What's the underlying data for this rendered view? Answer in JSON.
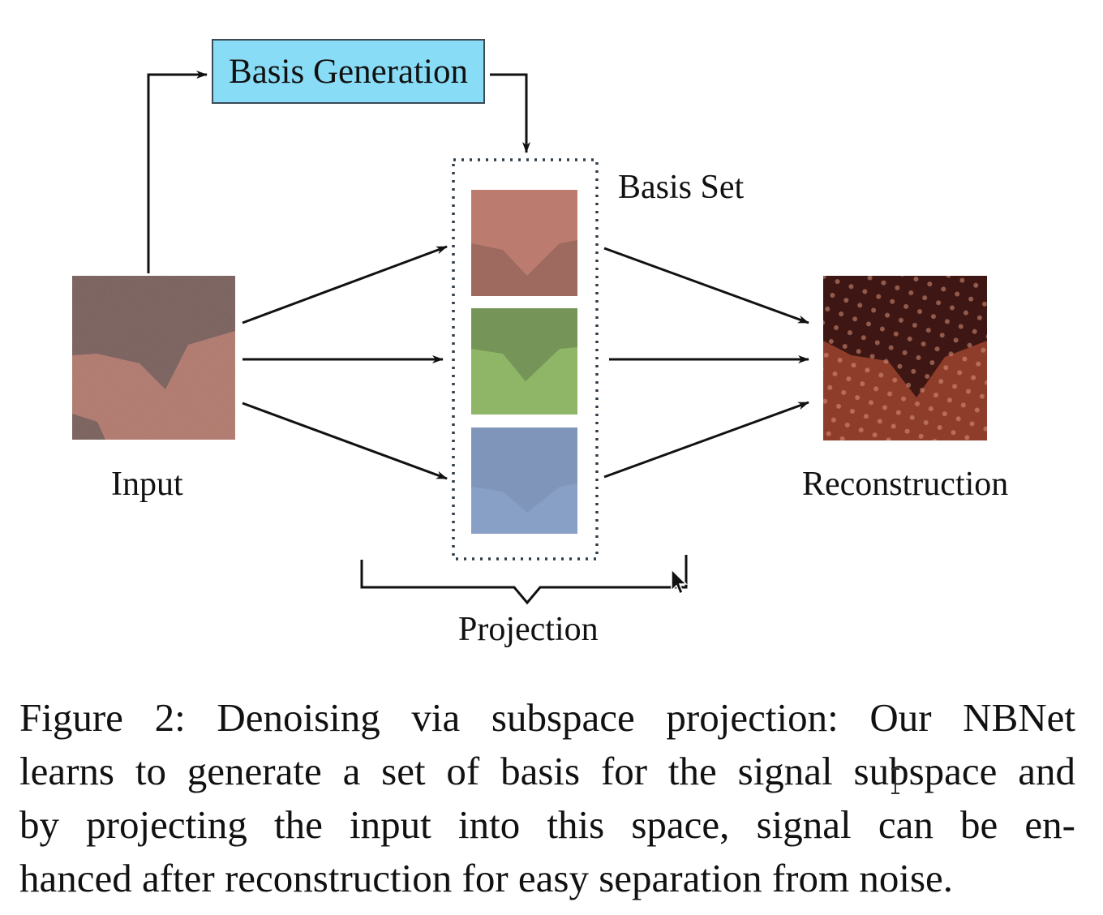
{
  "figure": {
    "basis_generation_label": "Basis Generation",
    "basis_set_label": "Basis Set",
    "input_label": "Input",
    "reconstruction_label": "Reconstruction",
    "projection_label": "Projection",
    "colors": {
      "basis_box_fill": "#89dcf6",
      "basis_red": "#a4503f",
      "basis_green": "#5b8a2c",
      "basis_blue": "#4d6ea0",
      "input_dark": "#3a1814",
      "input_light": "#8a3c2c",
      "recon_dark": "#3e1613",
      "recon_light": "#8f3d2b"
    }
  },
  "caption": {
    "lines": [
      "Figure 2: Denoising via subspace projection: Our NBNet",
      "learns to generate a set of basis for the signal subspace and",
      "by projecting the input into this space, signal can be en-",
      "hanced after reconstruction for easy separation from noise."
    ]
  },
  "cursors": {
    "arrow_icon": "mouse-pointer-icon",
    "ibeam_icon": "text-cursor-icon"
  }
}
